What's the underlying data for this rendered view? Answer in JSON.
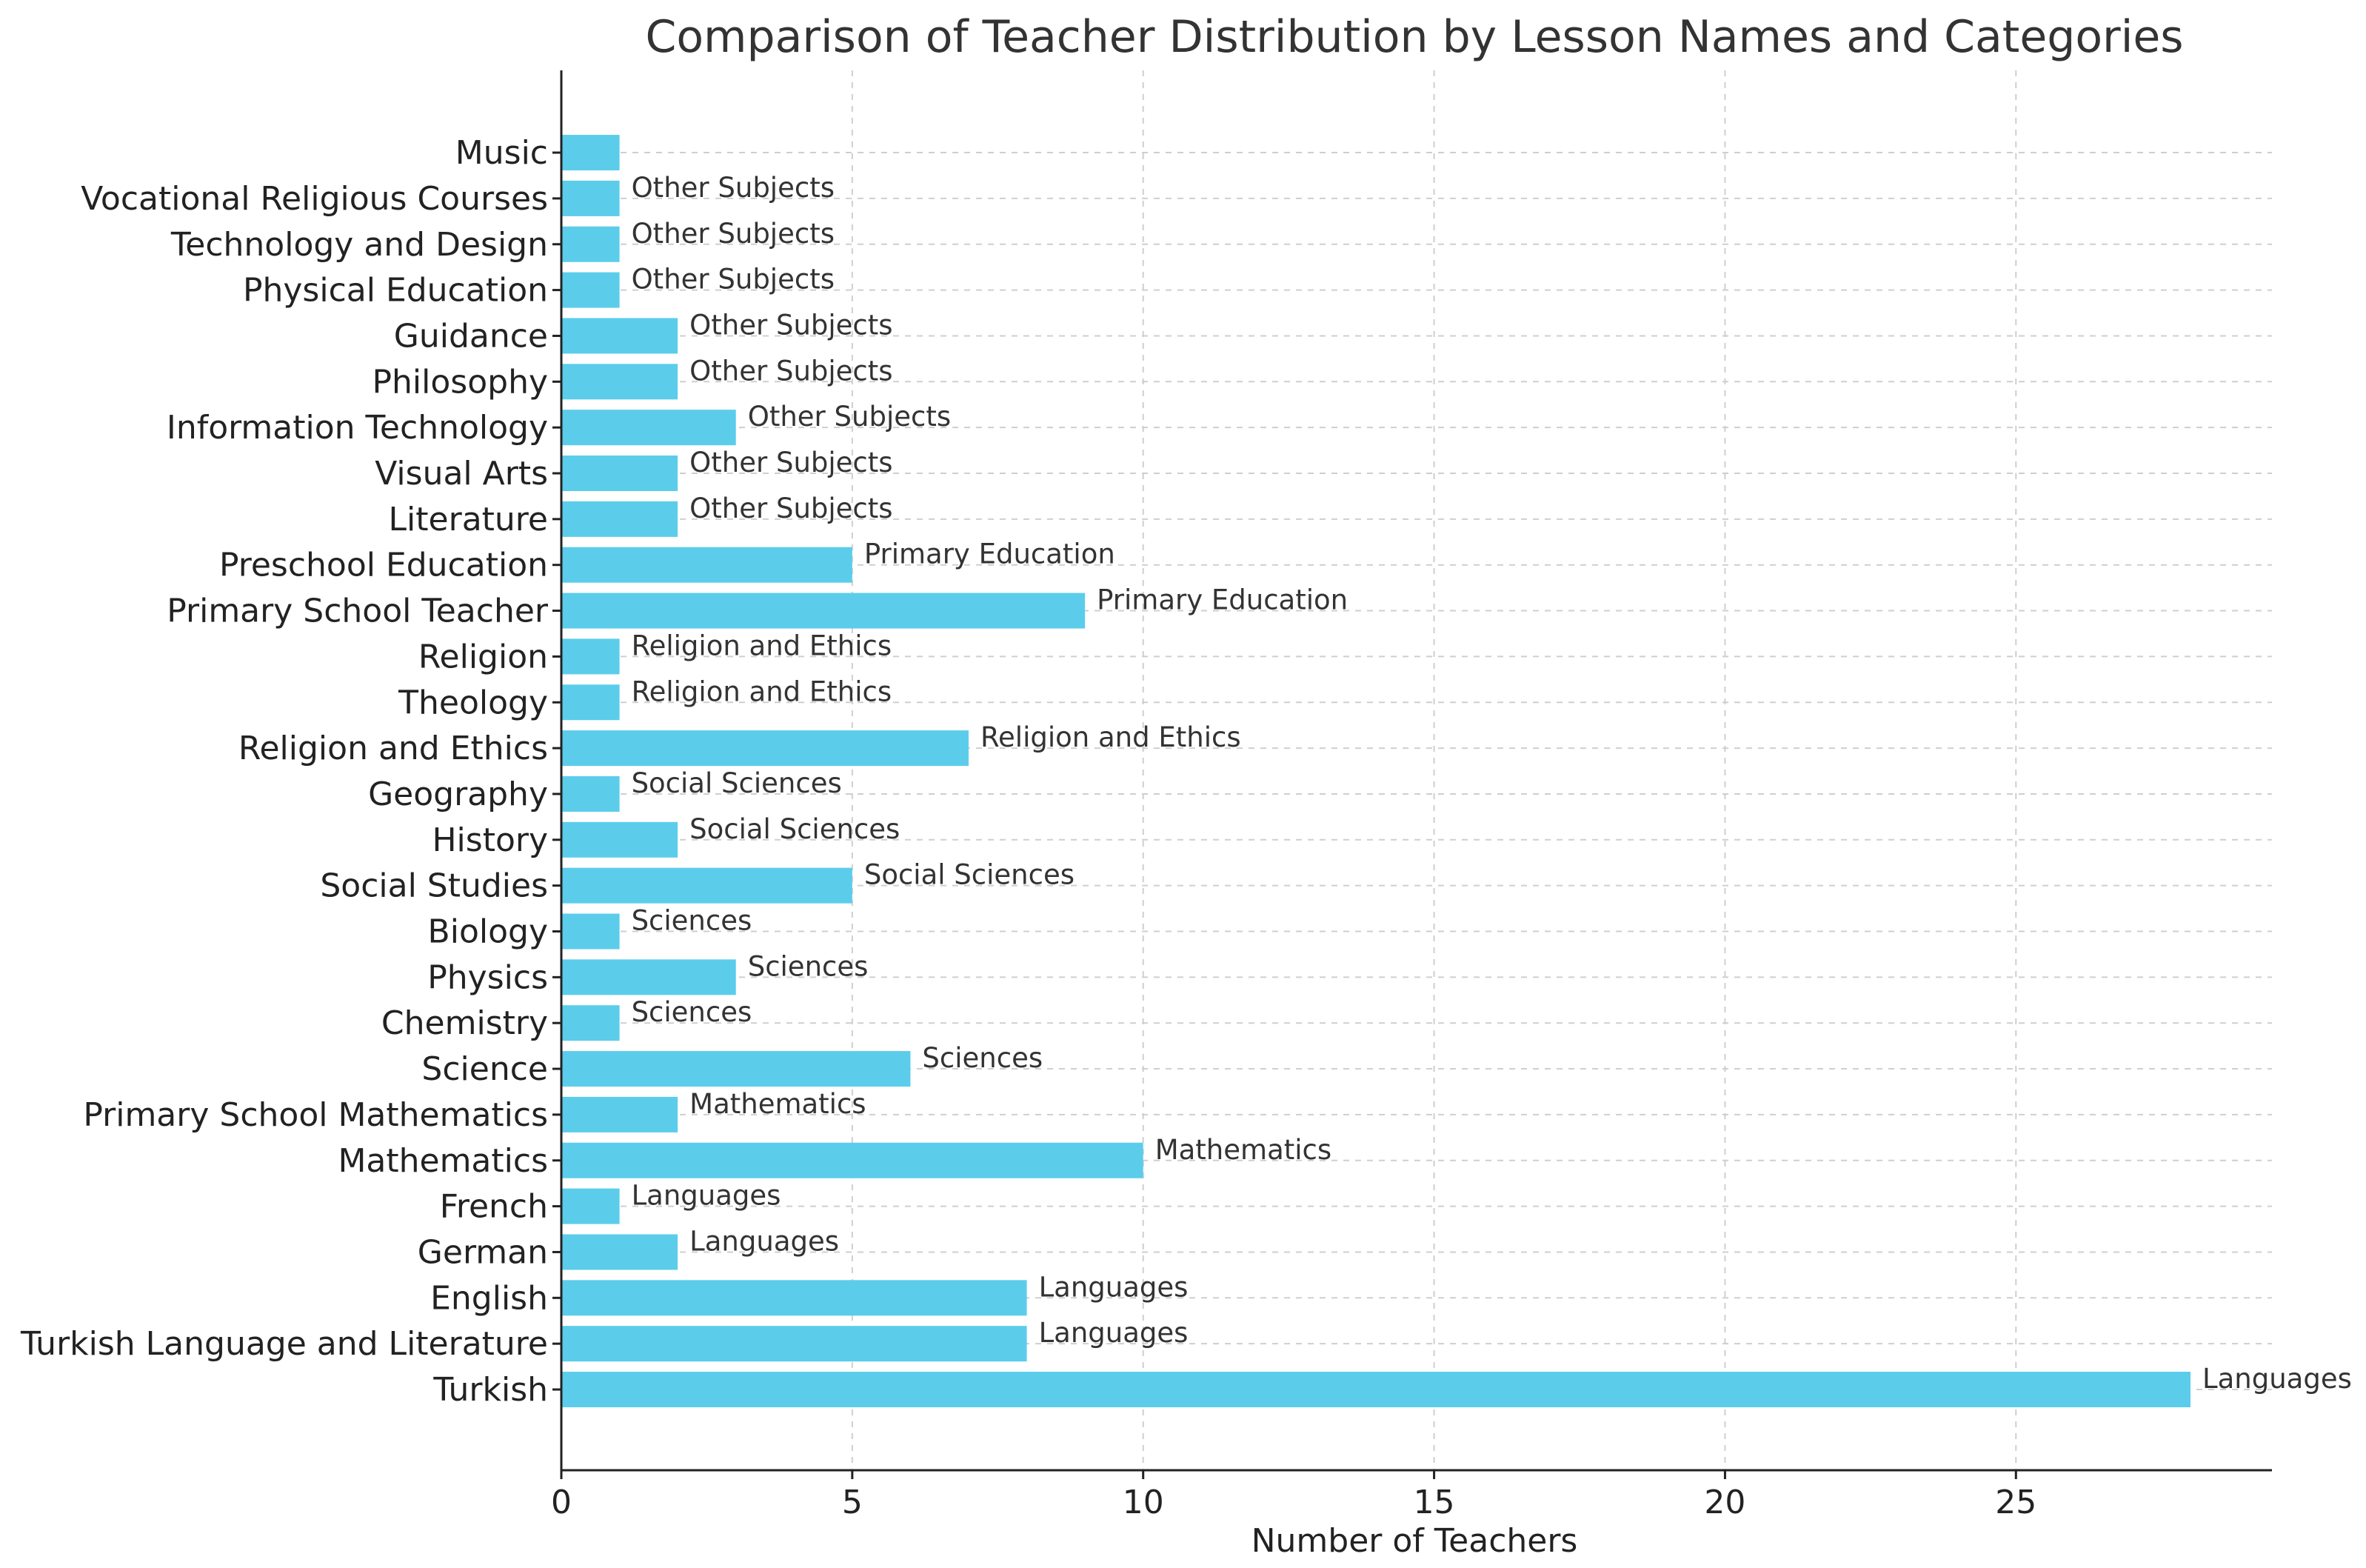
{
  "chart_data": {
    "type": "bar",
    "orientation": "horizontal",
    "title": "Comparison of Teacher Distribution by Lesson Names and Categories",
    "xlabel": "Number of Teachers",
    "ylabel": "",
    "xlim": [
      0,
      29.4
    ],
    "xticks": [
      0,
      5,
      10,
      15,
      20,
      25
    ],
    "grid": true,
    "bar_color": "#5BCDEB",
    "categories": [
      "Turkish",
      "Turkish Language and Literature",
      "English",
      "German",
      "French",
      "Mathematics",
      "Primary School Mathematics",
      "Science",
      "Chemistry",
      "Physics",
      "Biology",
      "Social Studies",
      "History",
      "Geography",
      "Religion and Ethics",
      "Theology",
      "Religion",
      "Primary School Teacher",
      "Preschool Education",
      "Literature",
      "Visual Arts",
      "Information Technology",
      "Philosophy",
      "Guidance",
      "Physical Education",
      "Technology and Design",
      "Vocational Religious Courses",
      "Music"
    ],
    "values": [
      28,
      8,
      8,
      2,
      1,
      10,
      2,
      6,
      1,
      3,
      1,
      5,
      2,
      1,
      7,
      1,
      1,
      9,
      5,
      2,
      2,
      3,
      2,
      2,
      1,
      1,
      1,
      1
    ],
    "annotations": [
      "Languages",
      "Languages",
      "Languages",
      "Languages",
      "Languages",
      "Mathematics",
      "Mathematics",
      "Sciences",
      "Sciences",
      "Sciences",
      "Sciences",
      "Social Sciences",
      "Social Sciences",
      "Social Sciences",
      "Religion and Ethics",
      "Religion and Ethics",
      "Religion and Ethics",
      "Primary Education",
      "Primary Education",
      "Other Subjects",
      "Other Subjects",
      "Other Subjects",
      "Other Subjects",
      "Other Subjects",
      "Other Subjects",
      "Other Subjects",
      "Other Subjects",
      ""
    ]
  }
}
